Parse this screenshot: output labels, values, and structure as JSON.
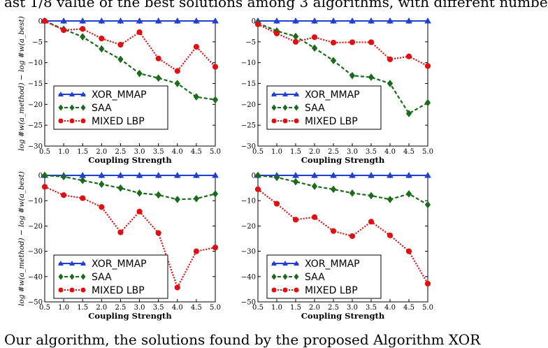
{
  "caption_top": "ast 1/8 value of the best solutions among 3 algorithms, with different numbe",
  "caption_bottom": "Our algorithm, the solutions found by the proposed Algorithm XOR",
  "colors": {
    "xor": "#1f3fd6",
    "saa": "#1a6b1a",
    "mixed": "#e01010"
  },
  "chart_data": [
    {
      "type": "line",
      "xlabel": "Coupling Strength",
      "ylabel": "log #w(a_method) − log #w(a_best)",
      "x": [
        0.5,
        1.0,
        1.5,
        2.0,
        2.5,
        3.0,
        3.5,
        4.0,
        4.5,
        5.0
      ],
      "xticks": [
        "0.5",
        "1.0",
        "1.5",
        "2.0",
        "2.5",
        "3.0",
        "3.5",
        "4.0",
        "4.5",
        "5.0"
      ],
      "ylim": [
        -30,
        0
      ],
      "yticks": [
        "0",
        "−5",
        "−10",
        "−15",
        "−20",
        "−25",
        "−30"
      ],
      "ytick_values": [
        0,
        -5,
        -10,
        -15,
        -20,
        -25,
        -30
      ],
      "legend": [
        "XOR_MMAP",
        "SAA",
        "MIXED LBP"
      ],
      "series": [
        {
          "name": "XOR_MMAP",
          "values": [
            0,
            0,
            0,
            0,
            0,
            0,
            0,
            0,
            0,
            0
          ]
        },
        {
          "name": "SAA",
          "values": [
            0,
            -2,
            -3.8,
            -6.7,
            -9.2,
            -12.6,
            -13.7,
            -15,
            -18.2,
            -18.9
          ]
        },
        {
          "name": "MIXED LBP",
          "values": [
            0,
            -2.2,
            -1.9,
            -4.2,
            -5.7,
            -2.7,
            -9,
            -12,
            -6.2,
            -11
          ]
        }
      ]
    },
    {
      "type": "line",
      "xlabel": "Coupling Strength",
      "ylabel": "",
      "x": [
        0.5,
        1.0,
        1.5,
        2.0,
        2.5,
        3.0,
        3.5,
        4.0,
        4.5,
        5.0
      ],
      "xticks": [
        "0.5",
        "1.0",
        "1.5",
        "2.0",
        "2.5",
        "3.0",
        "3.5",
        "4.0",
        "4.5",
        "5.0"
      ],
      "ylim": [
        -30,
        0
      ],
      "yticks": [
        "0",
        "−5",
        "−10",
        "−15",
        "−20",
        "−25",
        "−30"
      ],
      "ytick_values": [
        0,
        -5,
        -10,
        -15,
        -20,
        -25,
        -30
      ],
      "legend": [
        "XOR_MMAP",
        "SAA",
        "MIXED LBP"
      ],
      "series": [
        {
          "name": "XOR_MMAP",
          "values": [
            0,
            0,
            0,
            0,
            0,
            0,
            0,
            0,
            0,
            0
          ]
        },
        {
          "name": "SAA",
          "values": [
            -0.5,
            -2.4,
            -3.7,
            -6.5,
            -9.5,
            -13.1,
            -13.5,
            -15,
            -22.2,
            -19.6
          ]
        },
        {
          "name": "MIXED LBP",
          "values": [
            -0.8,
            -3.0,
            -5.0,
            -3.9,
            -5.2,
            -5.1,
            -5.1,
            -9.2,
            -8.5,
            -10.8
          ]
        }
      ]
    },
    {
      "type": "line",
      "xlabel": "Coupling Strength",
      "ylabel": "log #w(a_method) − log #w(a_best)",
      "x": [
        0.5,
        1.0,
        1.5,
        2.0,
        2.5,
        3.0,
        3.5,
        4.0,
        4.5,
        5.0
      ],
      "xticks": [
        "0.5",
        "1.0",
        "1.5",
        "2.0",
        "2.5",
        "3.0",
        "3.5",
        "4.0",
        "4.5",
        "5.0"
      ],
      "ylim": [
        -50,
        0
      ],
      "yticks": [
        "0",
        "−10",
        "−20",
        "−30",
        "−40",
        "−50"
      ],
      "ytick_values": [
        0,
        -10,
        -20,
        -30,
        -40,
        -50
      ],
      "legend": [
        "XOR_MMAP",
        "SAA",
        "MIXED LBP"
      ],
      "series": [
        {
          "name": "XOR_MMAP",
          "values": [
            0,
            0,
            0,
            0,
            0,
            0,
            0,
            0,
            0,
            0
          ]
        },
        {
          "name": "SAA",
          "values": [
            0,
            -0.5,
            -2,
            -3.5,
            -5,
            -7,
            -7.7,
            -9.5,
            -9.2,
            -7.3
          ]
        },
        {
          "name": "MIXED LBP",
          "values": [
            -4.5,
            -7.8,
            -9,
            -12.5,
            -22.5,
            -14.3,
            -22.8,
            -44.3,
            -30,
            -28.5
          ]
        }
      ]
    },
    {
      "type": "line",
      "xlabel": "Coupling Strength",
      "ylabel": "",
      "x": [
        0.5,
        1.0,
        1.5,
        2.0,
        2.5,
        3.0,
        3.5,
        4.0,
        4.5,
        5.0
      ],
      "xticks": [
        "0.5",
        "1.0",
        "1.5",
        "2.0",
        "2.5",
        "3.0",
        "3.5",
        "4.0",
        "4.5",
        "5.0"
      ],
      "ylim": [
        -50,
        0
      ],
      "yticks": [
        "0",
        "−10",
        "−20",
        "−30",
        "−40",
        "−50"
      ],
      "ytick_values": [
        0,
        -10,
        -20,
        -30,
        -40,
        -50
      ],
      "legend": [
        "XOR_MMAP",
        "SAA",
        "MIXED LBP"
      ],
      "series": [
        {
          "name": "XOR_MMAP",
          "values": [
            0,
            0,
            0,
            0,
            0,
            0,
            0,
            0,
            0,
            0
          ]
        },
        {
          "name": "SAA",
          "values": [
            0,
            -0.8,
            -2.5,
            -4.3,
            -5.5,
            -7,
            -8,
            -9.5,
            -7.3,
            -11.6
          ]
        },
        {
          "name": "MIXED LBP",
          "values": [
            -5.5,
            -11.2,
            -17.5,
            -16.5,
            -22,
            -24,
            -18.3,
            -23.7,
            -30,
            -42.8
          ]
        }
      ]
    }
  ]
}
